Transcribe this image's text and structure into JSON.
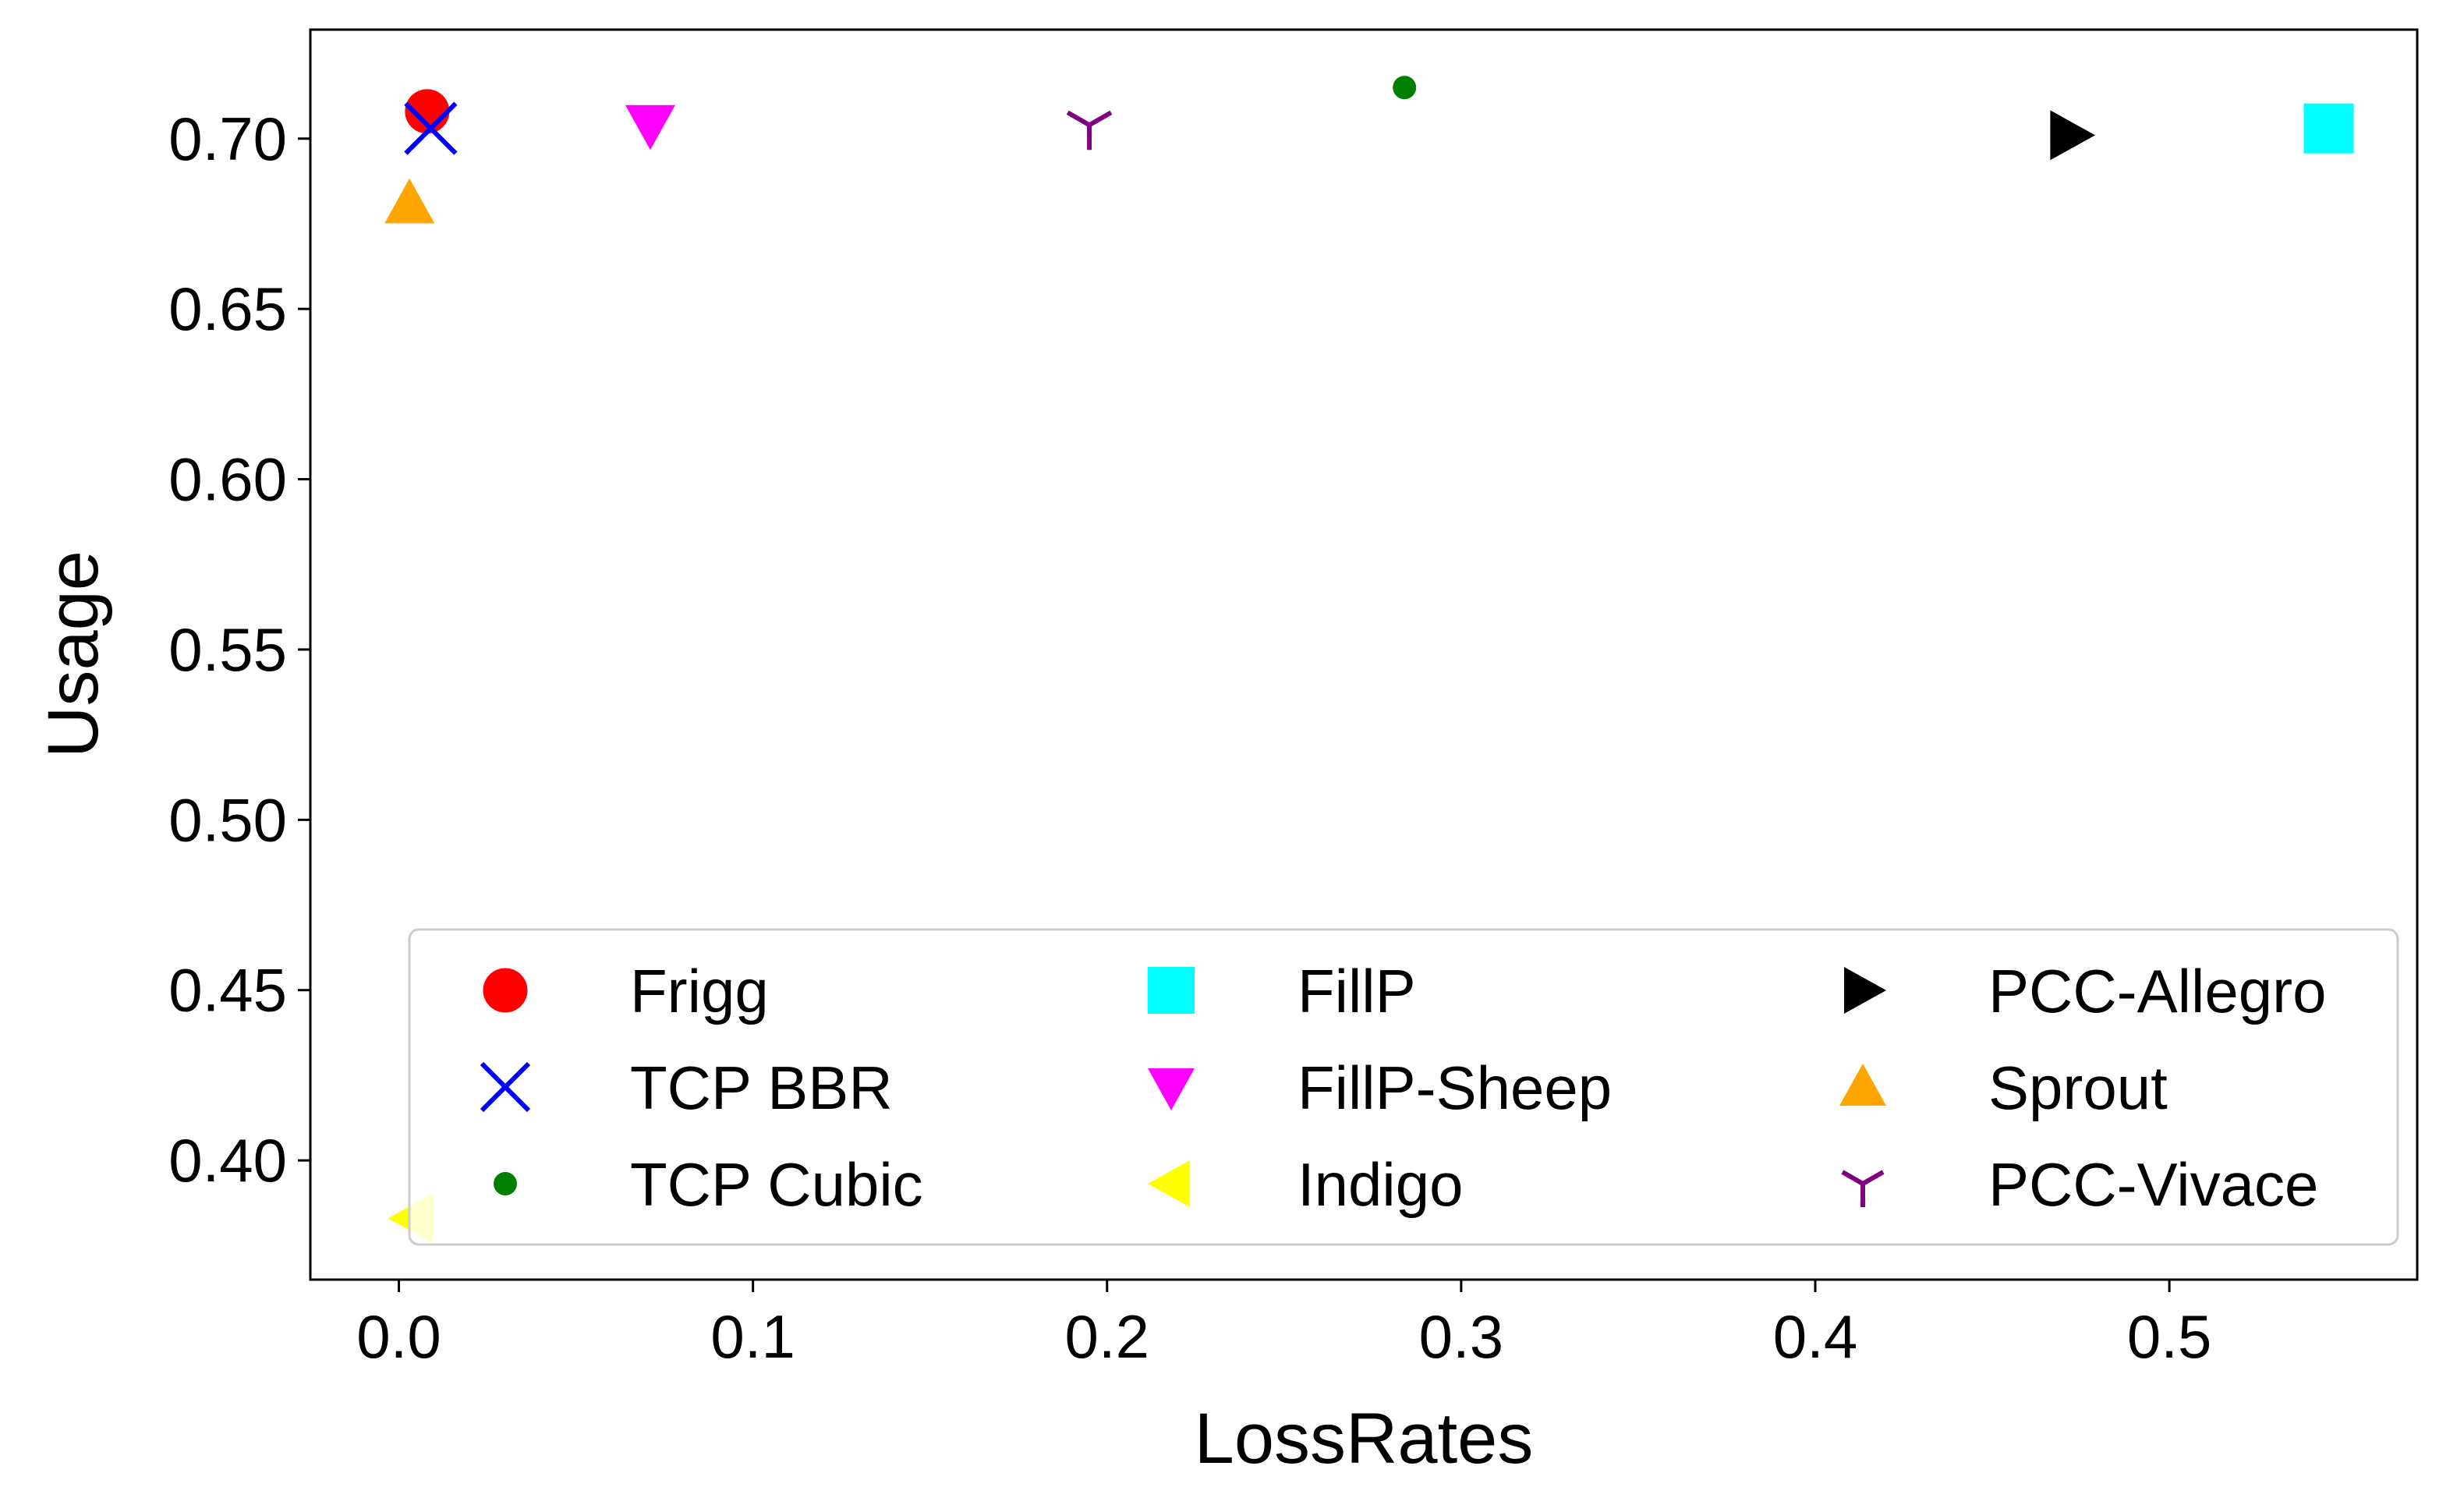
{
  "chart_data": {
    "type": "scatter",
    "xlabel": "LossRates",
    "ylabel": "Usage",
    "xlim": [
      -0.025,
      0.57
    ],
    "ylim": [
      0.365,
      0.732
    ],
    "xticks": [
      "0.0",
      "0.1",
      "0.2",
      "0.3",
      "0.4",
      "0.5"
    ],
    "yticks": [
      "0.40",
      "0.45",
      "0.50",
      "0.55",
      "0.60",
      "0.65",
      "0.70"
    ],
    "grid": false,
    "legend": {
      "placement": "lower-center",
      "columns": 3
    },
    "series": [
      {
        "name": "Frigg",
        "marker": "circle",
        "color": "#ff0000",
        "x": 0.008,
        "y": 0.708
      },
      {
        "name": "TCP BBR",
        "marker": "x",
        "color": "#0000ff",
        "x": 0.009,
        "y": 0.703
      },
      {
        "name": "TCP Cubic",
        "marker": "point",
        "color": "#008000",
        "x": 0.284,
        "y": 0.715
      },
      {
        "name": "FillP",
        "marker": "square",
        "color": "#00ffff",
        "x": 0.545,
        "y": 0.703
      },
      {
        "name": "FillP-Sheep",
        "marker": "triangle-down",
        "color": "#ff00ff",
        "x": 0.071,
        "y": 0.704
      },
      {
        "name": "Indigo",
        "marker": "triangle-left",
        "color": "#ffff00",
        "x": 0.004,
        "y": 0.383
      },
      {
        "name": "PCC-Allegro",
        "marker": "triangle-right",
        "color": "#000000",
        "x": 0.472,
        "y": 0.701
      },
      {
        "name": "Sprout",
        "marker": "triangle-up",
        "color": "#ffa500",
        "x": 0.003,
        "y": 0.681
      },
      {
        "name": "PCC-Vivace",
        "marker": "tri-down",
        "color": "#800080",
        "x": 0.195,
        "y": 0.704
      }
    ]
  }
}
